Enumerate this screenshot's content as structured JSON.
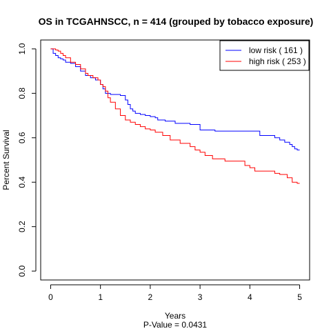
{
  "chart_data": {
    "type": "line",
    "title": "OS in TCGAHNSCC, n = 414 (grouped by tobacco exposure)",
    "xlabel": "Years",
    "ylabel": "Percent Survival",
    "subtitle": "P-Value = 0.0431",
    "xlim": [
      -0.2,
      5.2
    ],
    "ylim": [
      -0.04,
      1.04
    ],
    "x_ticks": [
      0,
      1,
      2,
      3,
      4,
      5
    ],
    "x_tick_labels": [
      "0",
      "1",
      "2",
      "3",
      "4",
      "5"
    ],
    "y_ticks": [
      0.0,
      0.2,
      0.4,
      0.6,
      0.8,
      1.0
    ],
    "y_tick_labels": [
      "0.0",
      "0.2",
      "0.4",
      "0.6",
      "0.8",
      "1.0"
    ],
    "grid": false,
    "legend_position": "top-right",
    "series": [
      {
        "name": "low risk ( 161 )",
        "color": "#0000FF",
        "step_x": [
          0,
          0.05,
          0.1,
          0.15,
          0.2,
          0.25,
          0.3,
          0.4,
          0.5,
          0.6,
          0.7,
          0.8,
          0.9,
          1.0,
          1.05,
          1.1,
          1.2,
          1.4,
          1.5,
          1.55,
          1.6,
          1.65,
          1.7,
          1.8,
          1.9,
          2.0,
          2.1,
          2.15,
          2.3,
          2.5,
          2.8,
          3.0,
          3.3,
          3.5,
          4.0,
          4.1,
          4.2,
          4.3,
          4.4,
          4.5,
          4.6,
          4.7,
          4.8,
          4.85,
          4.9,
          4.95,
          5.0
        ],
        "step_y": [
          1.0,
          0.98,
          0.97,
          0.96,
          0.955,
          0.95,
          0.94,
          0.935,
          0.92,
          0.9,
          0.88,
          0.87,
          0.86,
          0.84,
          0.82,
          0.8,
          0.795,
          0.79,
          0.77,
          0.75,
          0.73,
          0.72,
          0.71,
          0.705,
          0.7,
          0.695,
          0.69,
          0.68,
          0.675,
          0.665,
          0.66,
          0.635,
          0.63,
          0.63,
          0.63,
          0.63,
          0.61,
          0.61,
          0.61,
          0.6,
          0.59,
          0.58,
          0.57,
          0.56,
          0.55,
          0.545,
          0.545
        ]
      },
      {
        "name": "high risk ( 253 )",
        "color": "#FF0000",
        "step_x": [
          0,
          0.1,
          0.15,
          0.2,
          0.25,
          0.3,
          0.4,
          0.5,
          0.6,
          0.7,
          0.75,
          0.85,
          0.95,
          1.0,
          1.05,
          1.1,
          1.15,
          1.2,
          1.3,
          1.4,
          1.5,
          1.6,
          1.7,
          1.8,
          1.9,
          2.0,
          2.1,
          2.25,
          2.4,
          2.6,
          2.8,
          2.9,
          3.0,
          3.1,
          3.25,
          3.5,
          3.6,
          3.8,
          3.9,
          4.0,
          4.1,
          4.2,
          4.5,
          4.6,
          4.75,
          4.85,
          4.95,
          5.0
        ],
        "step_y": [
          1.0,
          0.995,
          0.99,
          0.98,
          0.97,
          0.96,
          0.94,
          0.93,
          0.91,
          0.89,
          0.88,
          0.87,
          0.86,
          0.84,
          0.83,
          0.81,
          0.78,
          0.76,
          0.73,
          0.7,
          0.68,
          0.67,
          0.66,
          0.65,
          0.64,
          0.635,
          0.625,
          0.61,
          0.59,
          0.575,
          0.56,
          0.545,
          0.535,
          0.52,
          0.505,
          0.495,
          0.495,
          0.495,
          0.475,
          0.465,
          0.45,
          0.45,
          0.44,
          0.435,
          0.42,
          0.4,
          0.395,
          0.395
        ]
      }
    ]
  }
}
